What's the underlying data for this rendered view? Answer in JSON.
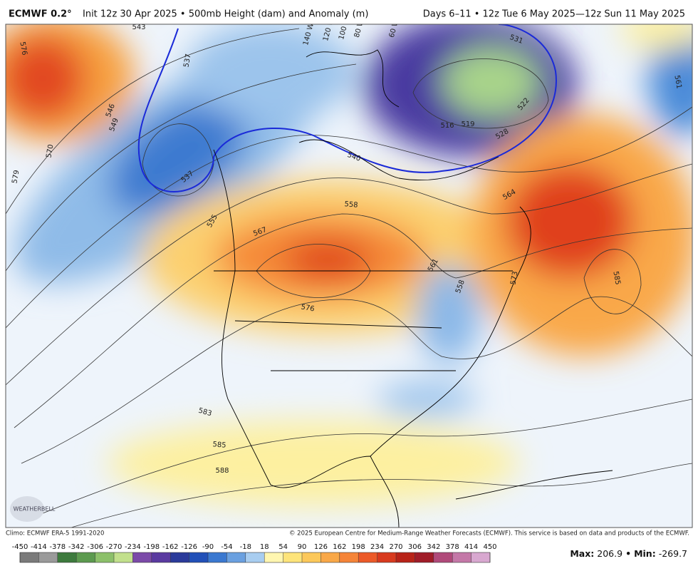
{
  "header": {
    "model": "ECMWF 0.2°",
    "subtitle": "Init 12z 30 Apr 2025 • 500mb Height (dam) and Anomaly (m)",
    "valid": "Days 6–11 • 12z Tue 6 May 2025—12z Sun 11 May 2025"
  },
  "map": {
    "contour_labels": [
      "543",
      "576",
      "549",
      "546",
      "570",
      "579",
      "537",
      "537",
      "555",
      "567",
      "558",
      "540",
      "531",
      "516",
      "519",
      "522",
      "528",
      "564",
      "561",
      "558",
      "573",
      "585",
      "576",
      "583",
      "585",
      "588",
      "561"
    ],
    "longitude_labels": [
      "140 W",
      "120 W",
      "100 W",
      "80 W",
      "60 W"
    ],
    "logo": "WEATHERBELL"
  },
  "footer": {
    "climo": "Climo: ECMWF ERA-5 1991-2020",
    "copyright": "© 2025 European Centre for Medium-Range Weather Forecasts (ECMWF). This service is based on data and products of the ECMWF."
  },
  "colorbar": {
    "ticks": [
      -450,
      -414,
      -378,
      -342,
      -306,
      -270,
      -234,
      -198,
      -162,
      -126,
      -90,
      -54,
      -18,
      18,
      54,
      90,
      126,
      162,
      198,
      234,
      270,
      306,
      342,
      378,
      414,
      450
    ],
    "colors": [
      "#7a7a7a",
      "#9a9a9a",
      "#3d7a3d",
      "#5c9a4f",
      "#8cc06a",
      "#c2e08c",
      "#7b4aa8",
      "#5a3aa0",
      "#2a3a9a",
      "#2150b8",
      "#3a78d0",
      "#6aa0e0",
      "#a8cdf0",
      "#fff6b0",
      "#fde47a",
      "#fcc85a",
      "#f9a848",
      "#f58438",
      "#ec5a28",
      "#d83a1e",
      "#b82318",
      "#a01c28",
      "#b04a7a",
      "#c478a8",
      "#d8a8d0"
    ]
  },
  "stats": {
    "max_label": "Max:",
    "max_value": 206.9,
    "separator": "•",
    "min_label": "Min:",
    "min_value": -269.7
  }
}
